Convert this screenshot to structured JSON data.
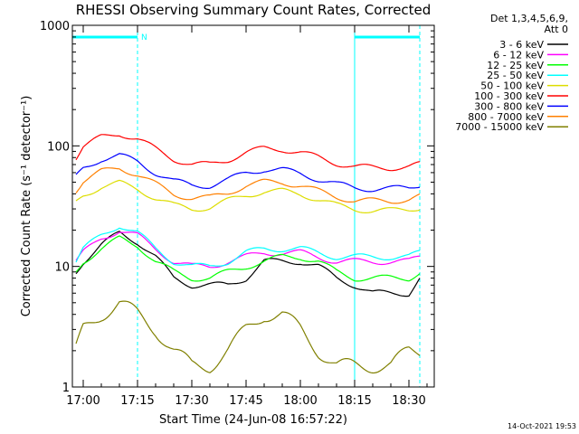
{
  "chart_data": {
    "type": "line",
    "title": "RHESSI Observing Summary Count Rates, Corrected",
    "xlabel": "Start Time (24-Jun-08 16:57:22)",
    "ylabel": "Corrected Count Rate (s⁻¹ detector⁻¹)",
    "y_scale": "log",
    "ylim": [
      1,
      1000
    ],
    "xlim": [
      "16:57",
      "18:37"
    ],
    "x_ticks": [
      "17:00",
      "17:15",
      "17:30",
      "17:45",
      "18:00",
      "18:15",
      "18:30"
    ],
    "y_ticks": [
      "1",
      "10",
      "100",
      "1000"
    ],
    "grid": false,
    "legend_position": "outside-right",
    "legend_header": [
      "Det 1,3,4,5,6,9,",
      "Att 0"
    ],
    "timestamp": "14-Oct-2021 19:53",
    "annotations": [
      {
        "type": "night-interval",
        "start": "16:57",
        "end": "17:15",
        "label": "N",
        "color": "#00ffff"
      },
      {
        "type": "night-interval",
        "start": "18:15",
        "end": "18:33",
        "label": "",
        "color": "#00ffff"
      }
    ],
    "x": [
      "16:58",
      "17:00",
      "17:05",
      "17:10",
      "17:15",
      "17:20",
      "17:25",
      "17:30",
      "17:35",
      "17:40",
      "17:45",
      "17:50",
      "17:55",
      "18:00",
      "18:05",
      "18:10",
      "18:15",
      "18:20",
      "18:25",
      "18:30",
      "18:33"
    ],
    "series": [
      {
        "name": "3 - 6 keV",
        "color": "#000000",
        "values": [
          9,
          11,
          15,
          19,
          16,
          12,
          8,
          7,
          7,
          7,
          8,
          11,
          11,
          11,
          10,
          8,
          7,
          6,
          6,
          6,
          8
        ]
      },
      {
        "name": "6 - 12 keV",
        "color": "#ff00ff",
        "values": [
          11,
          13,
          17,
          20,
          18,
          14,
          11,
          10,
          10,
          11,
          12,
          13,
          13,
          13,
          12,
          11,
          11,
          11,
          11,
          11,
          12
        ]
      },
      {
        "name": "12 - 25 keV",
        "color": "#00ff00",
        "values": [
          9,
          11,
          14,
          17,
          15,
          11,
          9,
          8,
          8,
          9,
          10,
          11,
          12,
          12,
          11,
          9,
          8,
          8,
          8,
          8,
          9
        ]
      },
      {
        "name": "25 - 50 keV",
        "color": "#00ffff",
        "values": [
          11,
          14,
          18,
          22,
          19,
          14,
          11,
          10,
          10,
          11,
          13,
          14,
          14,
          14,
          13,
          12,
          12,
          12,
          12,
          12,
          13
        ]
      },
      {
        "name": "50 - 100 keV",
        "color": "#dddd00",
        "values": [
          34,
          39,
          46,
          49,
          44,
          37,
          32,
          30,
          31,
          35,
          39,
          42,
          42,
          40,
          36,
          32,
          30,
          29,
          29,
          30,
          31
        ]
      },
      {
        "name": "100 - 300 keV",
        "color": "#ff0000",
        "values": [
          80,
          98,
          118,
          127,
          114,
          94,
          78,
          70,
          70,
          77,
          88,
          95,
          94,
          88,
          80,
          72,
          67,
          66,
          66,
          67,
          70
        ]
      },
      {
        "name": "300 - 800 keV",
        "color": "#0000ff",
        "values": [
          55,
          65,
          78,
          83,
          74,
          60,
          51,
          47,
          47,
          52,
          60,
          64,
          63,
          59,
          53,
          48,
          45,
          44,
          44,
          45,
          48
        ]
      },
      {
        "name": "800 - 7000 keV",
        "color": "#ff8000",
        "values": [
          43,
          51,
          61,
          66,
          58,
          48,
          40,
          37,
          37,
          41,
          47,
          50,
          50,
          47,
          42,
          38,
          35,
          35,
          35,
          36,
          38
        ]
      },
      {
        "name": "7000 - 15000 keV",
        "color": "#808000",
        "values": [
          2,
          3,
          4,
          5,
          4,
          3,
          2,
          1.5,
          1.5,
          2,
          3,
          4,
          4,
          3,
          2,
          1.5,
          1.5,
          1.5,
          1.5,
          2,
          2
        ]
      }
    ]
  }
}
